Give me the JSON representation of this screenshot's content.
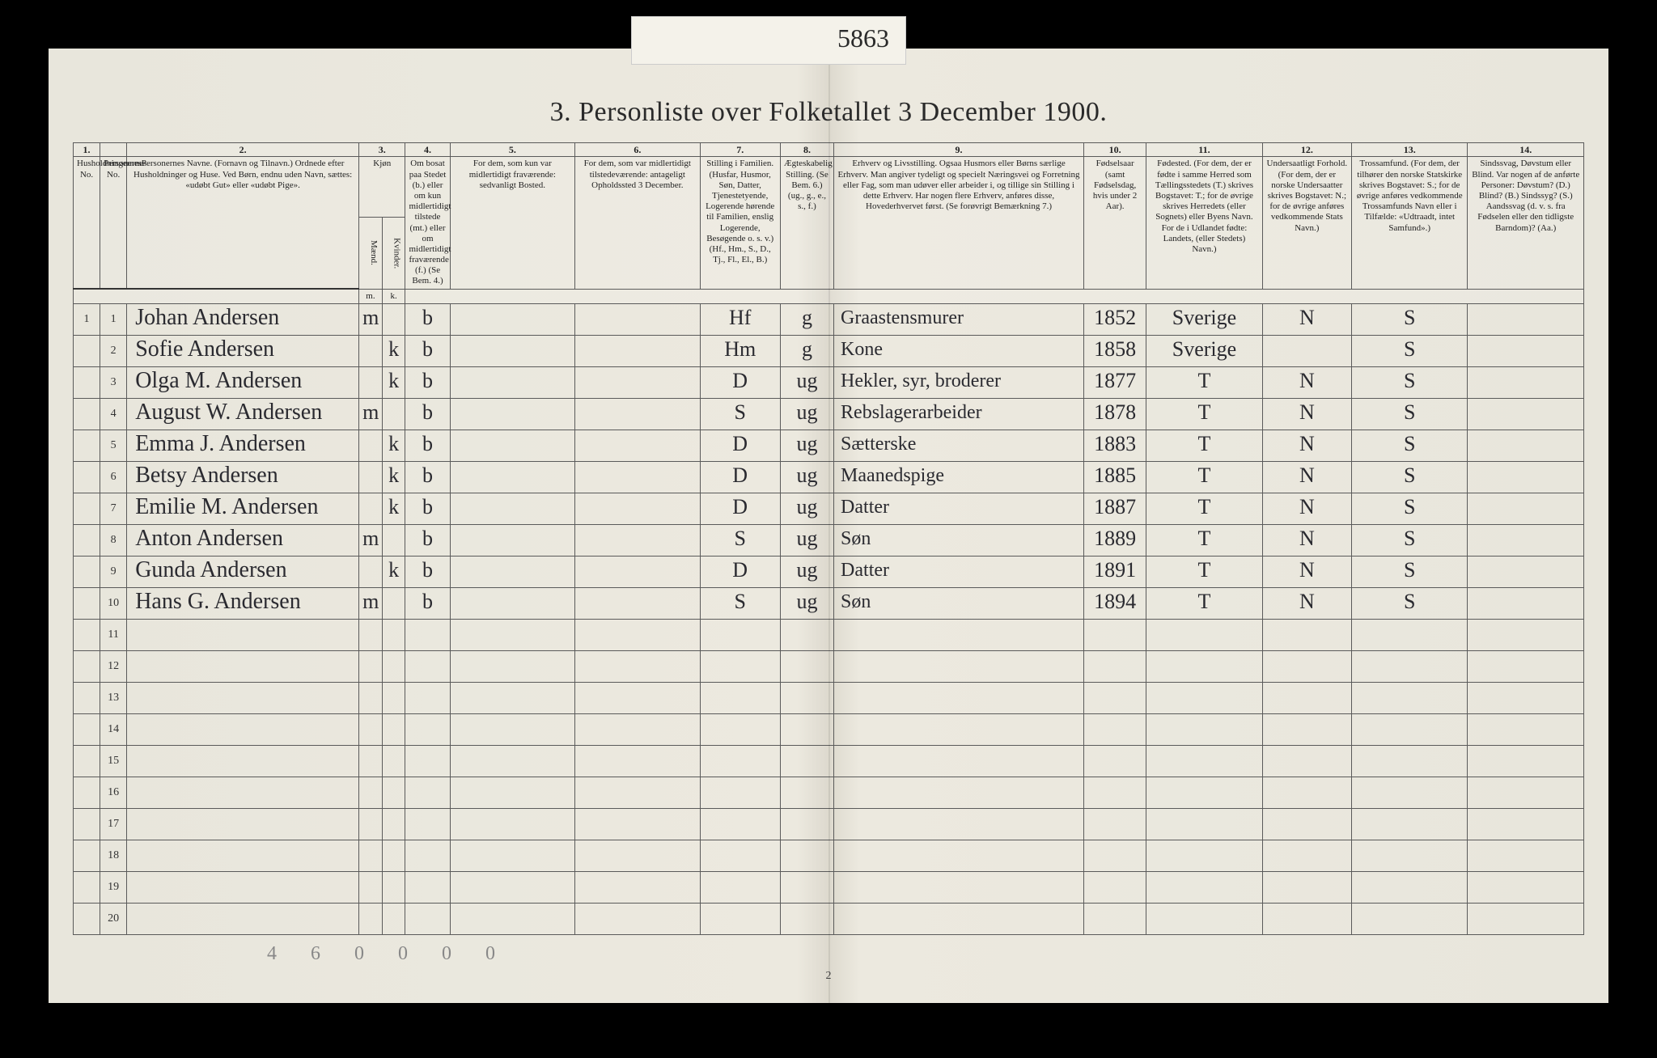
{
  "tab_note": "5863",
  "title": "3.  Personliste over Folketallet 3 December 1900.",
  "columns": {
    "nums": [
      "1.",
      "",
      "2.",
      "3.",
      "",
      "4.",
      "5.",
      "6.",
      "7.",
      "8.",
      "9.",
      "10.",
      "11.",
      "12.",
      "13.",
      "14."
    ],
    "h1": "Husholdningernes No.",
    "h2": "Personernes No.",
    "h3": "Personernes Navne.\n(Fornavn og Tilnavn.)\nOrdnede efter Husholdninger og Huse.\nVed Børn, endnu uden Navn, sættes: «udøbt Gut» eller «udøbt Pige».",
    "h4": "Kjøn",
    "h4m": "Mænd.",
    "h4k": "Kvinder.",
    "h5": "Om bosat paa Stedet (b.) eller om kun midlertidigt tilstede (mt.) eller om midlertidigt fraværende (f.) (Se Bem. 4.)",
    "h6": "For dem, som kun var midlertidigt fraværende:\nsedvanligt Bosted.",
    "h7": "For dem, som var midlertidigt tilstedeværende:\nantageligt Opholdssted 3 December.",
    "h8": "Stilling i Familien.\n(Husfar, Husmor, Søn, Datter, Tjenestetyende, Logerende hørende til Familien, enslig Logerende, Besøgende o. s. v.)\n(Hf., Hm., S., D., Tj., Fl., El., B.)",
    "h9": "Ægteskabelig Stilling.\n(Se Bem. 6.)\n(ug., g., e., s., f.)",
    "h10": "Erhverv og Livsstilling.\nOgsaa Husmors eller Børns særlige Erhverv. Man angiver tydeligt og specielt Næringsvei og Forretning eller Fag, som man udøver eller arbeider i, og tillige sin Stilling i dette Erhverv. Har nogen flere Erhverv, anføres disse, Hovederhvervet først.\n(Se forøvrigt Bemærkning 7.)",
    "h11": "Fødselsaar\n(samt Fødselsdag, hvis under 2 Aar).",
    "h12": "Fødested.\n(For dem, der er fødte i samme Herred som Tællingsstedets (T.) skrives Bogstavet: T.; for de øvrige skrives Herredets (eller Sognets) eller Byens Navn. For de i Udlandet fødte: Landets, (eller Stedets) Navn.)",
    "h13": "Undersaatligt Forhold.\n(For dem, der er norske Undersaatter skrives Bogstavet: N.; for de øvrige anføres vedkommende Stats Navn.)",
    "h14": "Trossamfund.\n(For dem, der tilhører den norske Statskirke skrives Bogstavet: S.; for de øvrige anføres vedkommende Trossamfunds Navn eller i Tilfælde: «Udtraadt, intet Samfund».)",
    "h15": "Sindssvag, Døvstum eller Blind.\nVar nogen af de anførte Personer:\nDøvstum? (D.)\nBlind? (B.)\nSindssyg? (S.)\nAandssvag (d. v. s. fra Fødselen eller den tidligste Barndom)? (Aa.)"
  },
  "rows": [
    {
      "hh": "1",
      "pn": "1",
      "name": "Johan Andersen",
      "sex": "m",
      "res": "b",
      "fam": "Hf",
      "mar": "g",
      "occ": "Graastensmurer",
      "yr": "1852",
      "bp": "Sverige",
      "nat": "N",
      "rel": "S"
    },
    {
      "hh": "",
      "pn": "2",
      "name": "Sofie Andersen",
      "sex": "k",
      "res": "b",
      "fam": "Hm",
      "mar": "g",
      "occ": "Kone",
      "yr": "1858",
      "bp": "Sverige",
      "nat": "",
      "rel": "S"
    },
    {
      "hh": "",
      "pn": "3",
      "name": "Olga M. Andersen",
      "sex": "k",
      "res": "b",
      "fam": "D",
      "mar": "ug",
      "occ": "Hekler, syr, broderer",
      "yr": "1877",
      "bp": "T",
      "nat": "N",
      "rel": "S"
    },
    {
      "hh": "",
      "pn": "4",
      "name": "August W. Andersen",
      "sex": "m",
      "res": "b",
      "fam": "S",
      "mar": "ug",
      "occ": "Rebslagerarbeider",
      "yr": "1878",
      "bp": "T",
      "nat": "N",
      "rel": "S"
    },
    {
      "hh": "",
      "pn": "5",
      "name": "Emma J. Andersen",
      "sex": "k",
      "res": "b",
      "fam": "D",
      "mar": "ug",
      "occ": "Sætterske",
      "yr": "1883",
      "bp": "T",
      "nat": "N",
      "rel": "S"
    },
    {
      "hh": "",
      "pn": "6",
      "name": "Betsy Andersen",
      "sex": "k",
      "res": "b",
      "fam": "D",
      "mar": "ug",
      "occ": "Maanedspige",
      "yr": "1885",
      "bp": "T",
      "nat": "N",
      "rel": "S"
    },
    {
      "hh": "",
      "pn": "7",
      "name": "Emilie M. Andersen",
      "sex": "k",
      "res": "b",
      "fam": "D",
      "mar": "ug",
      "occ": "Datter",
      "yr": "1887",
      "bp": "T",
      "nat": "N",
      "rel": "S"
    },
    {
      "hh": "",
      "pn": "8",
      "name": "Anton Andersen",
      "sex": "m",
      "res": "b",
      "fam": "S",
      "mar": "ug",
      "occ": "Søn",
      "yr": "1889",
      "bp": "T",
      "nat": "N",
      "rel": "S"
    },
    {
      "hh": "",
      "pn": "9",
      "name": "Gunda Andersen",
      "sex": "k",
      "res": "b",
      "fam": "D",
      "mar": "ug",
      "occ": "Datter",
      "yr": "1891",
      "bp": "T",
      "nat": "N",
      "rel": "S"
    },
    {
      "hh": "",
      "pn": "10",
      "name": "Hans G. Andersen",
      "sex": "m",
      "res": "b",
      "fam": "S",
      "mar": "ug",
      "occ": "Søn",
      "yr": "1894",
      "bp": "T",
      "nat": "N",
      "rel": "S"
    }
  ],
  "empty_rows": [
    "11",
    "12",
    "13",
    "14",
    "15",
    "16",
    "17",
    "18",
    "19",
    "20"
  ],
  "footnote": "4 6 0 0 0 0",
  "pagenum": "2"
}
